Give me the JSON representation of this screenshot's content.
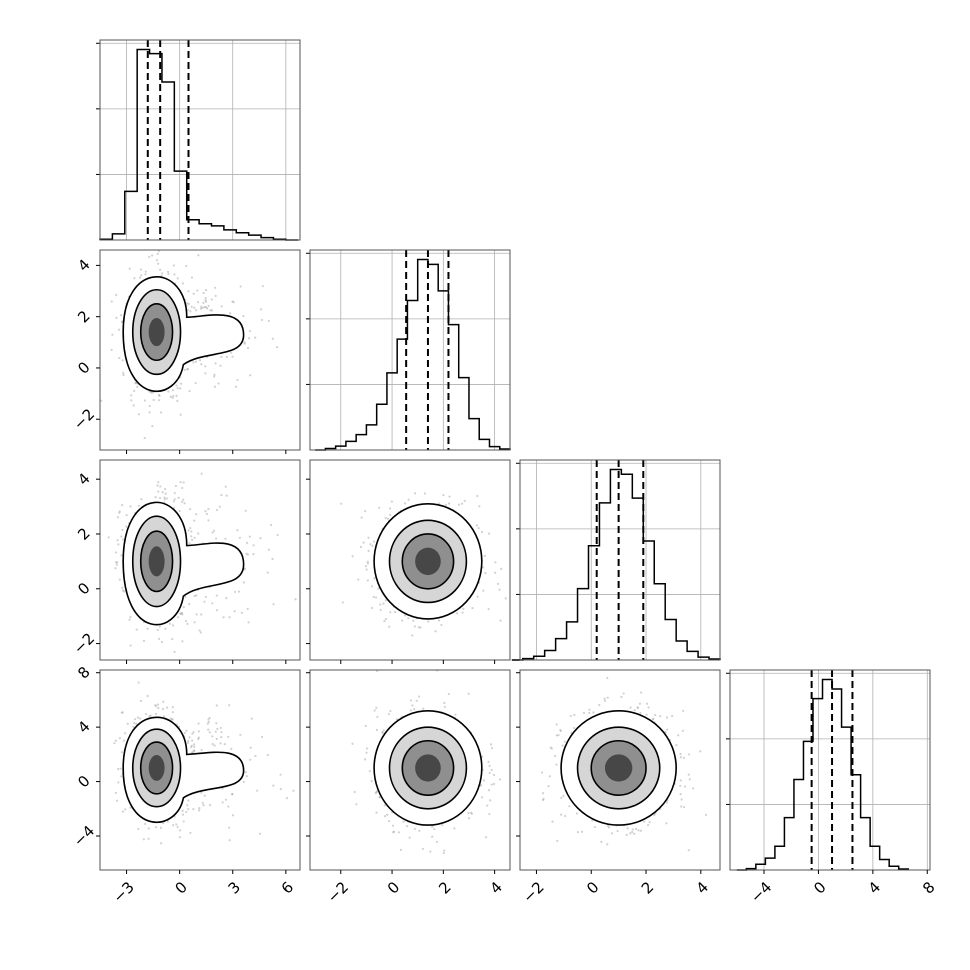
{
  "chart_data": {
    "type": "corner",
    "variables": 4,
    "grid": true,
    "quantile_line_style": "dashed",
    "histograms": [
      {
        "variable": 0,
        "bin_edges": [
          -4.5,
          -3.8,
          -3.1,
          -2.4,
          -1.7,
          -1.0,
          -0.3,
          0.4,
          1.1,
          1.8,
          2.5,
          3.2,
          3.9,
          4.6,
          5.3,
          6.0,
          6.7
        ],
        "counts": [
          0.2,
          1.5,
          12,
          47,
          46,
          39,
          17,
          5,
          4,
          3.5,
          2.5,
          1.8,
          1.2,
          0.6,
          0.2,
          0
        ],
        "quantiles": [
          -1.8,
          -1.1,
          0.5
        ]
      },
      {
        "variable": 1,
        "bin_edges": [
          -3.0,
          -2.6,
          -2.2,
          -1.8,
          -1.4,
          -1.0,
          -0.6,
          -0.2,
          0.2,
          0.6,
          1.0,
          1.4,
          1.8,
          2.2,
          2.6,
          3.0,
          3.4,
          3.8,
          4.2,
          4.6
        ],
        "counts": [
          0,
          0.3,
          0.8,
          1.8,
          3.2,
          5.2,
          9.5,
          16,
          23,
          31,
          39.5,
          38.5,
          33,
          26,
          15,
          6.5,
          2.2,
          0.7,
          0.2
        ],
        "quantiles": [
          0.55,
          1.4,
          2.2
        ]
      },
      {
        "variable": 2,
        "bin_edges": [
          -2.9,
          -2.5,
          -2.1,
          -1.7,
          -1.3,
          -0.9,
          -0.5,
          -0.1,
          0.3,
          0.7,
          1.1,
          1.5,
          1.9,
          2.3,
          2.7,
          3.1,
          3.5,
          3.9,
          4.3,
          4.7
        ],
        "counts": [
          0,
          0.3,
          0.8,
          2,
          4.5,
          8,
          15,
          24,
          33,
          40,
          39,
          34,
          25,
          16,
          8.5,
          4,
          1.8,
          0.6,
          0.2
        ],
        "quantiles": [
          0.2,
          1.0,
          1.9
        ]
      },
      {
        "variable": 3,
        "bin_edges": [
          -6.0,
          -5.3,
          -4.6,
          -3.9,
          -3.2,
          -2.5,
          -1.8,
          -1.1,
          -0.4,
          0.3,
          1.0,
          1.7,
          2.4,
          3.1,
          3.8,
          4.5,
          5.2,
          5.9,
          6.6
        ],
        "counts": [
          0,
          0.3,
          1.2,
          2.5,
          5,
          11,
          19,
          27,
          36,
          40,
          38,
          30,
          20,
          11,
          5,
          2.2,
          0.8,
          0.2
        ],
        "quantiles": [
          -0.5,
          1.0,
          2.5
        ]
      }
    ],
    "ranges": [
      [
        -4.5,
        6.8
      ],
      [
        -3.2,
        4.6
      ],
      [
        -2.6,
        4.7
      ],
      [
        -6.5,
        8.2
      ]
    ],
    "ticks": [
      {
        "values": [
          -3,
          0,
          3,
          6
        ],
        "labels": [
          "−3",
          "0",
          "3",
          "6"
        ]
      },
      {
        "values": [
          -2,
          0,
          2,
          4
        ],
        "labels": [
          "−2",
          "0",
          "2",
          "4"
        ]
      },
      {
        "values": [
          -2,
          0,
          2,
          4
        ],
        "labels": [
          "−2",
          "0",
          "2",
          "4"
        ]
      },
      {
        "values": [
          -4,
          0,
          4,
          8
        ],
        "labels": [
          "−4",
          "0",
          "4",
          "8"
        ]
      }
    ],
    "pairs": [
      {
        "x_var": 0,
        "y_var": 1,
        "mean": [
          -1.3,
          1.4
        ],
        "sd": [
          0.9,
          1.1
        ],
        "tail_dir": 1
      },
      {
        "x_var": 0,
        "y_var": 2,
        "mean": [
          -1.3,
          1.0
        ],
        "sd": [
          0.9,
          1.1
        ],
        "tail_dir": 1
      },
      {
        "x_var": 0,
        "y_var": 3,
        "mean": [
          -1.3,
          1.0
        ],
        "sd": [
          0.9,
          1.9
        ],
        "tail_dir": 1
      },
      {
        "x_var": 1,
        "y_var": 2,
        "mean": [
          1.4,
          1.0
        ],
        "sd": [
          1.0,
          1.0
        ],
        "tail_dir": 0
      },
      {
        "x_var": 1,
        "y_var": 3,
        "mean": [
          1.4,
          1.0
        ],
        "sd": [
          1.0,
          2.0
        ],
        "tail_dir": 0
      },
      {
        "x_var": 2,
        "y_var": 3,
        "mean": [
          1.0,
          1.0
        ],
        "sd": [
          1.0,
          2.0
        ],
        "tail_dir": 0
      }
    ],
    "density_levels": [
      0.39,
      0.86,
      1.47
    ]
  }
}
